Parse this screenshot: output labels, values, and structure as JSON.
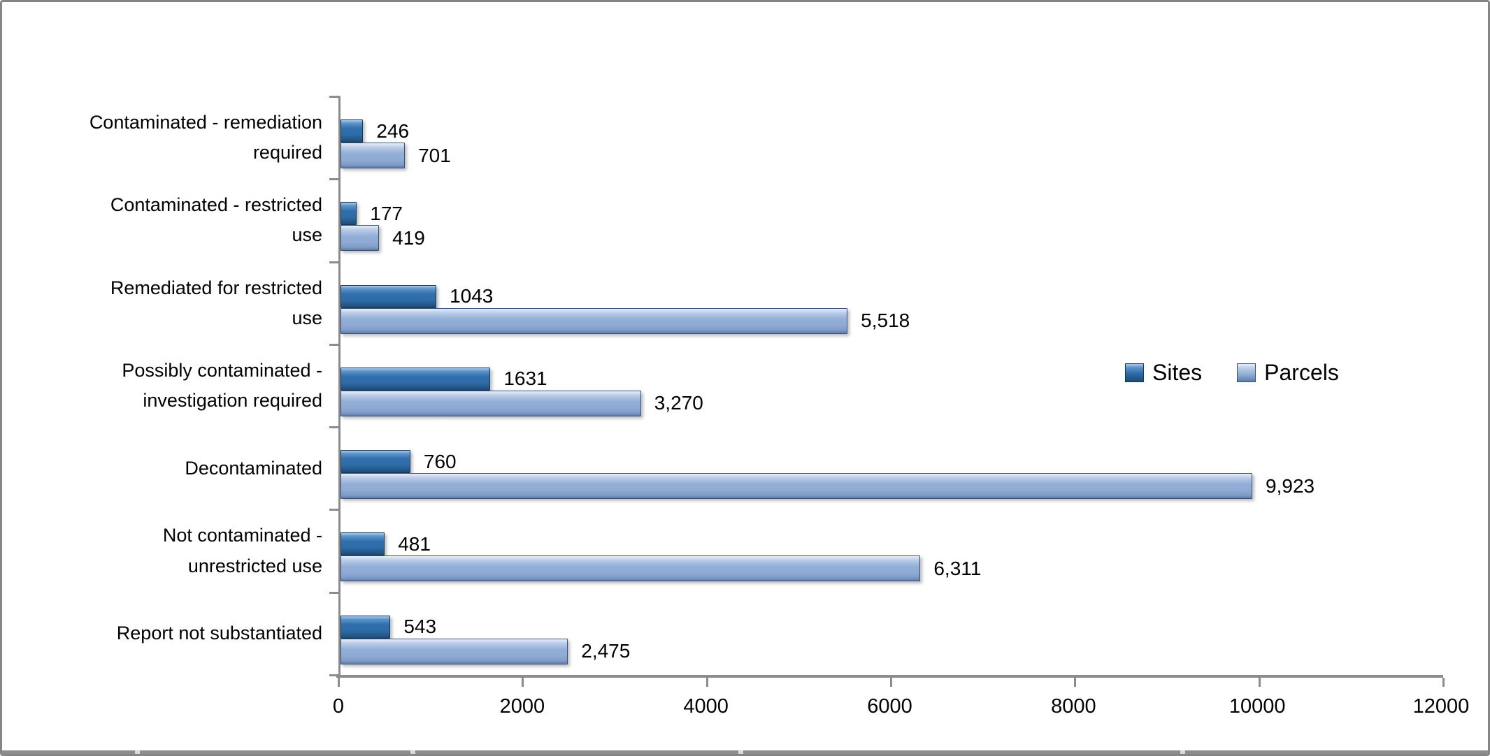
{
  "chart_data": {
    "type": "bar",
    "orientation": "horizontal",
    "title": "",
    "xlabel": "",
    "ylabel": "",
    "grid": false,
    "categories": [
      {
        "name": "Contaminated - remediation required",
        "lines": [
          "Contaminated - remediation",
          "required"
        ]
      },
      {
        "name": "Contaminated - restricted use",
        "lines": [
          "Contaminated - restricted",
          "use"
        ]
      },
      {
        "name": "Remediated for restricted use",
        "lines": [
          "Remediated for restricted",
          "use"
        ]
      },
      {
        "name": "Possibly contaminated - investigation required",
        "lines": [
          "Possibly contaminated -",
          "investigation required"
        ]
      },
      {
        "name": "Decontaminated",
        "lines": [
          "Decontaminated"
        ]
      },
      {
        "name": "Not contaminated - unrestricted use",
        "lines": [
          "Not contaminated -",
          "unrestricted use"
        ]
      },
      {
        "name": "Report not substantiated",
        "lines": [
          "Report not substantiated"
        ]
      }
    ],
    "series": [
      {
        "name": "Sites",
        "color": "#2E6CA8",
        "values": [
          246,
          177,
          1043,
          1631,
          760,
          481,
          543
        ],
        "data_labels": [
          "246",
          "177",
          "1043",
          "1631",
          "760",
          "481",
          "543"
        ]
      },
      {
        "name": "Parcels",
        "color": "#95B3D7",
        "values": [
          701,
          419,
          5518,
          3270,
          9923,
          6311,
          2475
        ],
        "data_labels": [
          "701",
          "419",
          "5,518",
          "3,270",
          "9,923",
          "6,311",
          "2,475"
        ]
      }
    ],
    "x_axis": {
      "min": 0,
      "max": 12000,
      "ticks": [
        0,
        2000,
        4000,
        6000,
        8000,
        10000,
        12000
      ],
      "tick_labels": [
        "0",
        "2000",
        "4000",
        "6000",
        "8000",
        "10000",
        "12000"
      ],
      "axis_color": "#8C8C8C"
    },
    "legend": {
      "position": "middle-right",
      "entries": [
        "Sites",
        "Parcels"
      ]
    }
  }
}
